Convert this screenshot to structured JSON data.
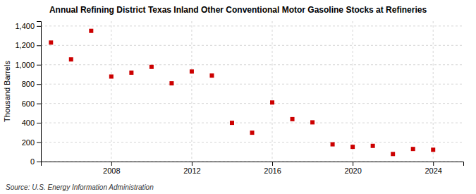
{
  "chart_data": {
    "type": "scatter",
    "title": "Annual Refining District Texas Inland Other Conventional Motor Gasoline Stocks at Refineries",
    "y_label": "Thousand Barrels",
    "annotations": [
      "Source: U.S. Energy Information Administration"
    ],
    "x": [
      2005,
      2006,
      2007,
      2008,
      2009,
      2010,
      2011,
      2012,
      2013,
      2014,
      2015,
      2016,
      2017,
      2018,
      2019,
      2020,
      2021,
      2022,
      2023,
      2024
    ],
    "values": [
      1229,
      1055,
      1350,
      878,
      918,
      978,
      808,
      930,
      888,
      400,
      298,
      610,
      438,
      405,
      178,
      152,
      162,
      78,
      130,
      122
    ],
    "color": "#cc0000",
    "marker": "square",
    "xlim": [
      2004.5,
      2025.5
    ],
    "xticks": [
      2008,
      2012,
      2016,
      2020,
      2024
    ],
    "ylim": [
      0,
      1450
    ],
    "yticks": [
      0,
      200,
      400,
      600,
      800,
      {
        "value": 1000,
        "label": "1,000"
      },
      {
        "value": 1200,
        "label": "1,200"
      },
      {
        "value": 1400,
        "label": "1,400"
      }
    ],
    "grid": true
  }
}
